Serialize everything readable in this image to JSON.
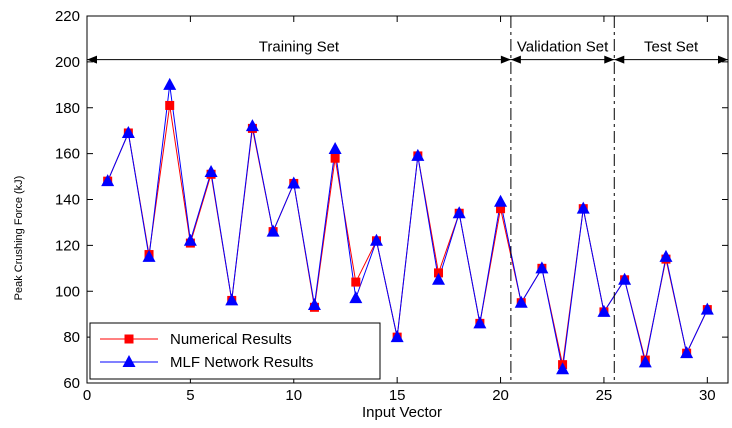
{
  "chart_data": {
    "type": "line",
    "title": "",
    "xlabel": "Input Vector",
    "ylabel": "Peak Crushing Force (kJ)",
    "xlim": [
      0,
      31
    ],
    "ylim": [
      60,
      220
    ],
    "xticks": [
      0,
      5,
      10,
      15,
      20,
      25,
      30
    ],
    "yticks": [
      60,
      80,
      100,
      120,
      140,
      160,
      180,
      200,
      220
    ],
    "grid": false,
    "legend_position": "bottom-left",
    "x": [
      1,
      2,
      3,
      4,
      5,
      6,
      7,
      8,
      9,
      10,
      11,
      12,
      13,
      14,
      15,
      16,
      17,
      18,
      19,
      20,
      21,
      22,
      23,
      24,
      25,
      26,
      27,
      28,
      29,
      30
    ],
    "series": [
      {
        "name": "Numerical Results",
        "color": "#ff0000",
        "marker": "square",
        "values": [
          148,
          169,
          116,
          181,
          121,
          151,
          96,
          171,
          126,
          147,
          93,
          158,
          104,
          122,
          80,
          159,
          108,
          134,
          86,
          136,
          95,
          110,
          68,
          136,
          91,
          105,
          70,
          114,
          73,
          92
        ]
      },
      {
        "name": "MLF Network Results",
        "color": "#0000ff",
        "marker": "triangle",
        "values": [
          148,
          169,
          115,
          190,
          122,
          152,
          96,
          172,
          126,
          147,
          94,
          162,
          97,
          122,
          80,
          159,
          105,
          134,
          86,
          139,
          95,
          110,
          66,
          136,
          91,
          105,
          69,
          115,
          73,
          92
        ]
      }
    ],
    "annotations": [
      {
        "label": "Training Set",
        "x_start": 0,
        "x_end": 20.5
      },
      {
        "label": "Validation Set",
        "x_start": 20.5,
        "x_end": 25.5
      },
      {
        "label": "Test Set",
        "x_start": 25.5,
        "x_end": 31
      }
    ],
    "divider_lines_x": [
      20.5,
      25.5
    ],
    "annotation_arrow_y": 201
  }
}
